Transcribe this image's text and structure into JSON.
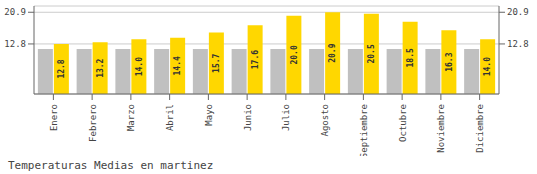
{
  "chart_data": {
    "type": "bar",
    "title": "Temperaturas Medias en martinez",
    "categories": [
      "Enero",
      "Febrero",
      "Marzo",
      "Abril",
      "Mayo",
      "Junio",
      "Julio",
      "Agosto",
      "Septiembre",
      "Octubre",
      "Noviembre",
      "Diciembre"
    ],
    "series": [
      {
        "color": "#C0C0C0",
        "values": [
          11.5,
          11.5,
          11.5,
          11.5,
          11.5,
          11.5,
          11.5,
          11.5,
          11.5,
          11.5,
          11.5,
          11.5
        ]
      },
      {
        "color": "#FFD700",
        "values": [
          12.8,
          13.2,
          14.0,
          14.4,
          15.7,
          17.6,
          20.0,
          20.9,
          20.5,
          18.5,
          16.3,
          14.0
        ],
        "value_labels": [
          "12.8",
          "13.2",
          "14.0",
          "14.4",
          "15.7",
          "17.6",
          "20.0",
          "20.9",
          "20.5",
          "18.5",
          "16.3",
          "14.0"
        ],
        "data_labels": true
      }
    ],
    "ylim": [
      0,
      22.5
    ],
    "yticks": [
      12.8,
      20.9
    ],
    "y2lim": [
      0,
      22.5
    ],
    "y2ticks": [
      12.8,
      20.9
    ],
    "grid": true
  }
}
